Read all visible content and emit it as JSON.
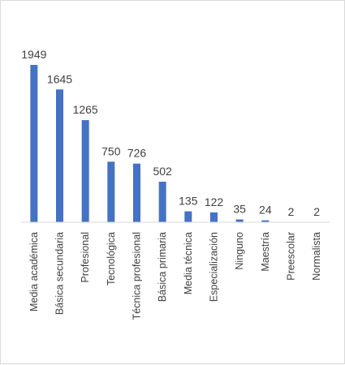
{
  "chart_data": {
    "type": "bar",
    "title": "",
    "xlabel": "",
    "ylabel": "",
    "categories": [
      "Media académica",
      "Básica secundaria",
      "Profesional",
      "Tecnológica",
      "Técnica profesional",
      "Básica primaria",
      "Media técnica",
      "Especialización",
      "Ninguno",
      "Maestría",
      "Preescolar",
      "Normalista"
    ],
    "values": [
      1949,
      1645,
      1265,
      750,
      726,
      502,
      135,
      122,
      35,
      24,
      2,
      2
    ],
    "ylim": [
      0,
      1949
    ],
    "grid": false,
    "legend": "none",
    "bar_color": "#4472c4",
    "axis_color": "#d9d9d9"
  }
}
